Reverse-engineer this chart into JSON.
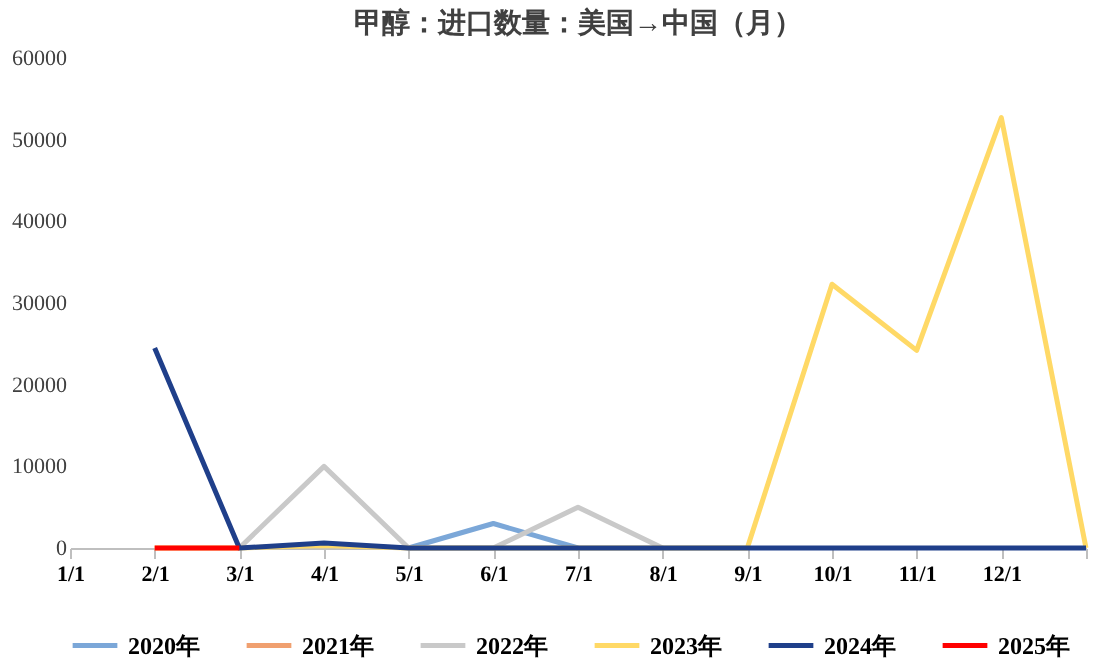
{
  "chart_data": {
    "type": "line",
    "title": "甲醇：进口数量：美国→中国（月）",
    "categories": [
      "1/1",
      "2/1",
      "3/1",
      "4/1",
      "5/1",
      "6/1",
      "7/1",
      "8/1",
      "9/1",
      "10/1",
      "11/1",
      "12/1",
      null
    ],
    "ylim": [
      0,
      60000
    ],
    "yticks": [
      0,
      10000,
      20000,
      30000,
      40000,
      50000,
      60000
    ],
    "grid": false,
    "legend": "bottom",
    "marker": "none",
    "line_style": "solid",
    "series": [
      {
        "name": "2020年",
        "color": "#7ba7d8",
        "values": [
          null,
          null,
          null,
          null,
          0,
          3000,
          0,
          null,
          null,
          null,
          null,
          null,
          null
        ]
      },
      {
        "name": "2021年",
        "color": "#f0a070",
        "values": [
          null,
          null,
          null,
          null,
          null,
          null,
          null,
          null,
          null,
          null,
          null,
          null,
          null
        ]
      },
      {
        "name": "2022年",
        "color": "#c9c9c9",
        "values": [
          null,
          null,
          0,
          10000,
          0,
          0,
          5000,
          0,
          null,
          null,
          null,
          null,
          null
        ]
      },
      {
        "name": "2023年",
        "color": "#ffd966",
        "values": [
          null,
          0,
          0,
          300,
          0,
          0,
          0,
          0,
          0,
          32300,
          24200,
          52700,
          0
        ]
      },
      {
        "name": "2024年",
        "color": "#1f3f8a",
        "values": [
          null,
          24500,
          0,
          600,
          0,
          0,
          0,
          0,
          0,
          0,
          0,
          0,
          0
        ]
      },
      {
        "name": "2025年",
        "color": "#ff0000",
        "values": [
          null,
          0,
          0,
          null,
          null,
          null,
          null,
          null,
          null,
          null,
          null,
          null,
          null
        ]
      }
    ]
  }
}
